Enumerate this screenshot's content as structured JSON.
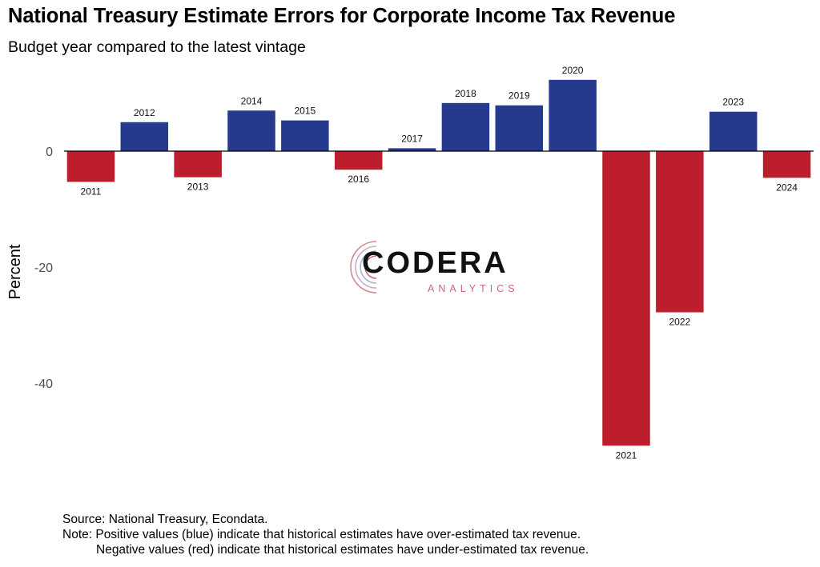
{
  "header": {
    "title": "National Treasury Estimate Errors for Corporate Income Tax Revenue",
    "subtitle": "Budget year compared to the latest vintage"
  },
  "logo": {
    "text": "CODERA",
    "subtext": "ANALYTICS"
  },
  "footer": {
    "source": "Source: National Treasury, Econdata.",
    "note_line1": "Note: Positive values (blue) indicate that historical estimates have over-estimated tax revenue.",
    "note_line2": "Negative values (red) indicate that historical estimates have under-estimated tax revenue."
  },
  "colors": {
    "positive": "#253a8c",
    "negative": "#bc1e2d",
    "axis_text": "#4d4d4d"
  },
  "chart_data": {
    "type": "bar",
    "title": "National Treasury Estimate Errors for Corporate Income Tax Revenue",
    "subtitle": "Budget year compared to the latest vintage",
    "xlabel": "",
    "ylabel": "Percent",
    "ylim": [
      -55,
      14
    ],
    "yticks": [
      0,
      -20,
      -40
    ],
    "grid": false,
    "legend": "none",
    "categories": [
      "2011",
      "2012",
      "2013",
      "2014",
      "2015",
      "2016",
      "2017",
      "2018",
      "2019",
      "2020",
      "2021",
      "2022",
      "2023",
      "2024"
    ],
    "values": [
      -5.3,
      5.0,
      -4.5,
      7.0,
      5.3,
      -3.2,
      0.5,
      8.3,
      7.9,
      12.3,
      -50.8,
      -27.8,
      6.8,
      -4.6
    ]
  }
}
